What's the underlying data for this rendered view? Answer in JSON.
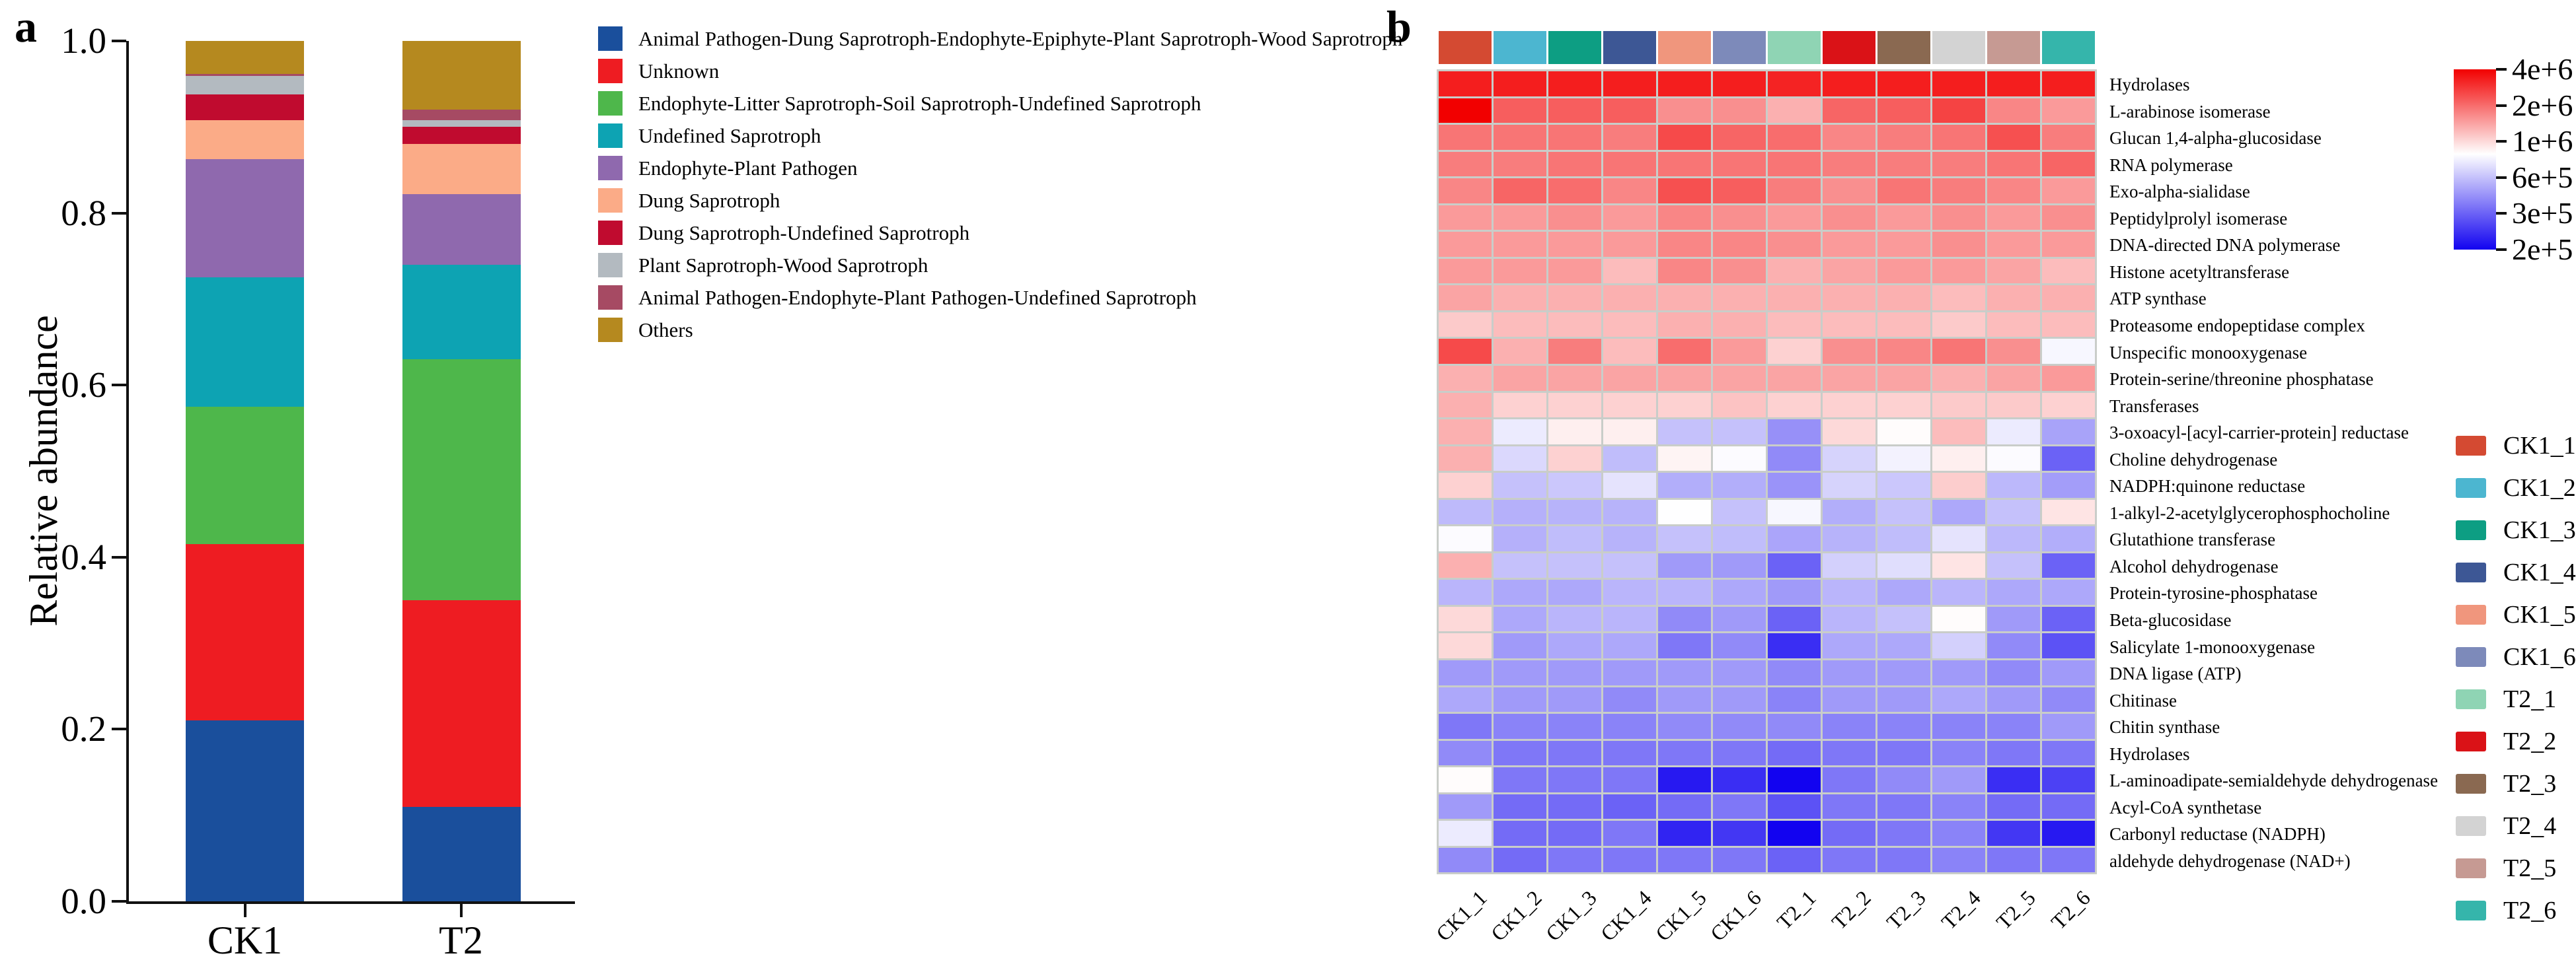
{
  "panel_a": {
    "label": "a",
    "y_axis_title": "Relative abundance",
    "y_tick_labels": [
      "1.0",
      "0.8",
      "0.6",
      "0.4",
      "0.2",
      "0.0"
    ],
    "chart_data": {
      "type": "bar",
      "stacked": true,
      "grid": false,
      "ylim": [
        0,
        1
      ],
      "legend_position": "right",
      "categories": [
        "CK1",
        "T2"
      ],
      "series": [
        {
          "name": "Animal Pathogen-Dung Saprotroph-Endophyte-Epiphyte-Plant Saprotroph-Wood Saprotroph",
          "color": "#1a4f9c",
          "values": [
            0.21,
            0.11
          ]
        },
        {
          "name": "Unknown",
          "color": "#ee1c22",
          "values": [
            0.205,
            0.24
          ]
        },
        {
          "name": "Endophyte-Litter Saprotroph-Soil Saprotroph-Undefined Saprotroph",
          "color": "#4eb74b",
          "values": [
            0.16,
            0.28
          ]
        },
        {
          "name": "Undefined Saprotroph",
          "color": "#0da3b3",
          "values": [
            0.15,
            0.11
          ]
        },
        {
          "name": "Endophyte-Plant Pathogen",
          "color": "#8f69ae",
          "values": [
            0.138,
            0.082
          ]
        },
        {
          "name": "Dung Saprotroph",
          "color": "#fbab87",
          "values": [
            0.045,
            0.058
          ]
        },
        {
          "name": "Dung Saprotroph-Undefined Saprotroph",
          "color": "#c00b2f",
          "values": [
            0.03,
            0.02
          ]
        },
        {
          "name": "Plant Saprotroph-Wood Saprotroph",
          "color": "#b3bac0",
          "values": [
            0.021,
            0.008
          ]
        },
        {
          "name": "Animal Pathogen-Endophyte-Plant Pathogen-Undefined Saprotroph",
          "color": "#a64a63",
          "values": [
            0.003,
            0.012
          ]
        },
        {
          "name": "Others",
          "color": "#b5891f",
          "values": [
            0.038,
            0.08
          ]
        }
      ]
    }
  },
  "panel_b": {
    "label": "b",
    "chart_data": {
      "type": "heatmap",
      "samples": [
        {
          "id": "CK1_1",
          "color": "#d44a32"
        },
        {
          "id": "CK1_2",
          "color": "#4cb6d0"
        },
        {
          "id": "CK1_3",
          "color": "#0d9e83"
        },
        {
          "id": "CK1_4",
          "color": "#3d5795"
        },
        {
          "id": "CK1_5",
          "color": "#f0967d"
        },
        {
          "id": "CK1_6",
          "color": "#7d8aba"
        },
        {
          "id": "T2_1",
          "color": "#8fd4b4"
        },
        {
          "id": "T2_2",
          "color": "#da1217"
        },
        {
          "id": "T2_3",
          "color": "#8a6951"
        },
        {
          "id": "T2_4",
          "color": "#d3d3d3"
        },
        {
          "id": "T2_5",
          "color": "#c69a93"
        },
        {
          "id": "T2_6",
          "color": "#35b5ab"
        }
      ],
      "rows": [
        "Hydrolases",
        "L-arabinose isomerase",
        "Glucan 1,4-alpha-glucosidase",
        "RNA polymerase",
        "Exo-alpha-sialidase",
        "Peptidylprolyl isomerase",
        "DNA-directed DNA polymerase",
        "Histone acetyltransferase",
        "ATP synthase",
        "Proteasome endopeptidase complex",
        "Unspecific monooxygenase",
        "Protein-serine/threonine phosphatase",
        "Transferases",
        "3-oxoacyl-[acyl-carrier-protein] reductase",
        "Choline dehydrogenase",
        "NADPH:quinone reductase",
        "1-alkyl-2-acetylglycerophosphocholine",
        "Glutathione transferase",
        "Alcohol dehydrogenase",
        "Protein-tyrosine-phosphatase",
        "Beta-glucosidase",
        "Salicylate 1-monooxygenase",
        "DNA ligase (ATP)",
        "Chitinase",
        "Chitin synthase",
        "Hydrolases",
        "L-aminoadipate-semialdehyde dehydrogenase",
        "Acyl-CoA synthetase",
        "Carbonyl reductase (NADPH)",
        "aldehyde dehydrogenase (NAD+)"
      ],
      "values": [
        [
          3300000,
          3300000,
          3300000,
          3300000,
          3300000,
          3300000,
          3200000,
          3300000,
          3300000,
          3300000,
          3300000,
          3300000
        ],
        [
          4000000,
          2200000,
          2200000,
          2200000,
          1600000,
          1600000,
          1300000,
          2100000,
          2200000,
          2600000,
          1700000,
          1500000
        ],
        [
          1900000,
          1900000,
          1900000,
          1800000,
          2500000,
          2100000,
          2000000,
          1700000,
          1800000,
          1900000,
          2400000,
          1800000
        ],
        [
          1800000,
          1800000,
          1900000,
          1900000,
          1900000,
          1900000,
          1900000,
          1800000,
          1800000,
          1800000,
          1900000,
          2100000
        ],
        [
          1700000,
          2100000,
          2000000,
          1700000,
          2400000,
          2200000,
          1800000,
          1600000,
          1900000,
          1800000,
          1700000,
          1500000
        ],
        [
          1500000,
          1500000,
          1600000,
          1500000,
          1700000,
          1600000,
          1500000,
          1600000,
          1500000,
          1600000,
          1500000,
          1600000
        ],
        [
          1500000,
          1500000,
          1500000,
          1500000,
          1700000,
          1700000,
          1600000,
          1500000,
          1500000,
          1600000,
          1500000,
          1500000
        ],
        [
          1500000,
          1500000,
          1500000,
          1200000,
          1700000,
          1600000,
          1300000,
          1400000,
          1500000,
          1500000,
          1400000,
          1200000
        ],
        [
          1400000,
          1300000,
          1300000,
          1300000,
          1300000,
          1300000,
          1300000,
          1300000,
          1300000,
          1200000,
          1300000,
          1300000
        ],
        [
          1100000,
          1200000,
          1200000,
          1200000,
          1300000,
          1300000,
          1200000,
          1200000,
          1200000,
          1100000,
          1200000,
          1200000
        ],
        [
          2500000,
          1300000,
          1800000,
          1200000,
          2000000,
          1500000,
          1050000,
          1600000,
          1700000,
          1900000,
          1600000,
          800000
        ],
        [
          1300000,
          1400000,
          1400000,
          1400000,
          1400000,
          1400000,
          1400000,
          1400000,
          1400000,
          1300000,
          1400000,
          1500000
        ],
        [
          1300000,
          1050000,
          1050000,
          1050000,
          1050000,
          1150000,
          1050000,
          1050000,
          1050000,
          1100000,
          1100000,
          1050000
        ],
        [
          1300000,
          750000,
          900000,
          900000,
          600000,
          600000,
          420000,
          1000000,
          850000,
          1200000,
          750000,
          480000
        ],
        [
          1300000,
          680000,
          1050000,
          580000,
          880000,
          820000,
          400000,
          660000,
          780000,
          900000,
          820000,
          300000
        ],
        [
          1050000,
          600000,
          620000,
          720000,
          520000,
          520000,
          430000,
          660000,
          620000,
          1080000,
          560000,
          460000
        ],
        [
          570000,
          530000,
          540000,
          540000,
          830000,
          600000,
          800000,
          520000,
          600000,
          500000,
          600000,
          950000
        ],
        [
          820000,
          530000,
          580000,
          540000,
          600000,
          580000,
          490000,
          540000,
          580000,
          720000,
          560000,
          520000
        ],
        [
          1300000,
          600000,
          600000,
          600000,
          450000,
          450000,
          300000,
          650000,
          700000,
          950000,
          600000,
          300000
        ],
        [
          550000,
          500000,
          500000,
          550000,
          550000,
          500000,
          450000,
          550000,
          500000,
          550000,
          500000,
          500000
        ],
        [
          1000000,
          500000,
          550000,
          550000,
          400000,
          450000,
          300000,
          550000,
          600000,
          850000,
          450000,
          300000
        ],
        [
          1000000,
          450000,
          500000,
          500000,
          350000,
          400000,
          240000,
          500000,
          500000,
          650000,
          400000,
          280000
        ],
        [
          450000,
          450000,
          450000,
          450000,
          450000,
          450000,
          400000,
          450000,
          450000,
          450000,
          400000,
          450000
        ],
        [
          500000,
          450000,
          450000,
          400000,
          450000,
          450000,
          380000,
          450000,
          450000,
          500000,
          450000,
          400000
        ],
        [
          350000,
          380000,
          380000,
          380000,
          400000,
          400000,
          400000,
          380000,
          380000,
          380000,
          380000,
          450000
        ],
        [
          400000,
          350000,
          350000,
          350000,
          350000,
          350000,
          320000,
          350000,
          350000,
          380000,
          350000,
          350000
        ],
        [
          850000,
          350000,
          350000,
          350000,
          220000,
          240000,
          200000,
          350000,
          400000,
          450000,
          240000,
          260000
        ],
        [
          450000,
          320000,
          320000,
          300000,
          320000,
          350000,
          280000,
          350000,
          350000,
          380000,
          320000,
          320000
        ],
        [
          750000,
          320000,
          320000,
          350000,
          230000,
          250000,
          200000,
          320000,
          350000,
          380000,
          250000,
          220000
        ],
        [
          400000,
          320000,
          350000,
          350000,
          350000,
          350000,
          300000,
          350000,
          350000,
          380000,
          350000,
          350000
        ]
      ],
      "colorbar": {
        "tick_labels": [
          "4e+6",
          "2e+6",
          "1e+6",
          "6e+5",
          "3e+5",
          "2e+5"
        ],
        "tick_values": [
          4000000,
          2000000,
          1000000,
          600000,
          300000,
          200000
        ],
        "top_color": "#f20000",
        "mid_color": "#ffffff",
        "bottom_color": "#1203f0",
        "white_fraction": 0.47
      }
    }
  }
}
